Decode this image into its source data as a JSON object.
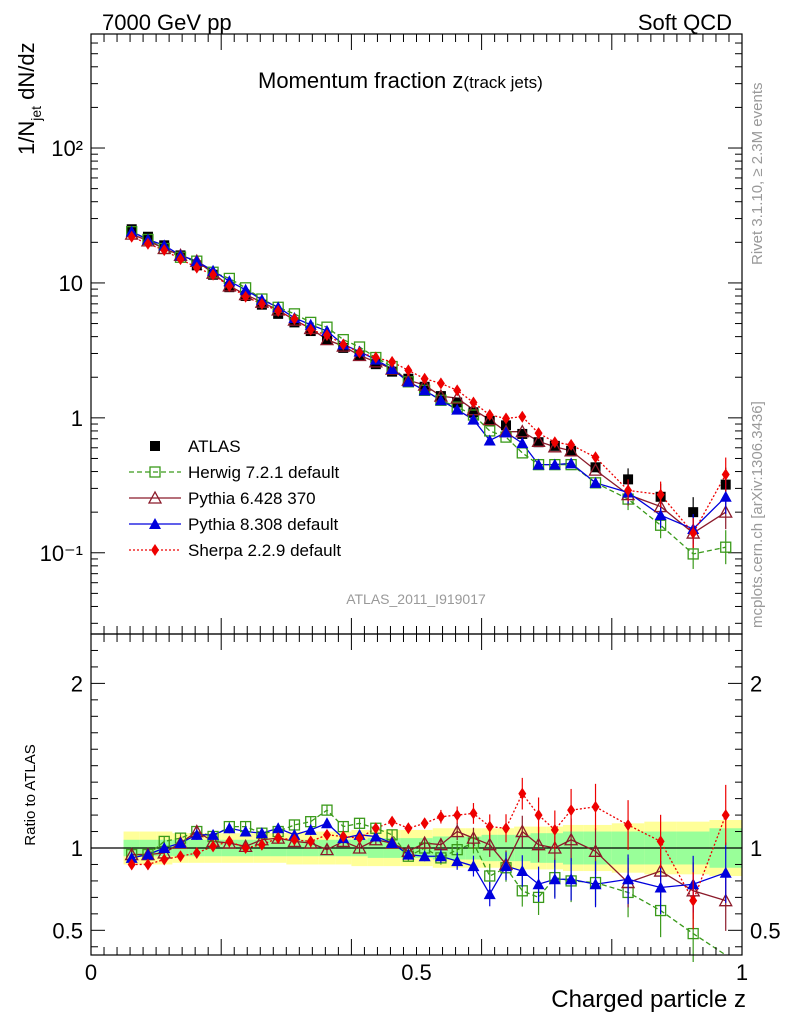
{
  "header": {
    "energy": "7000 GeV pp",
    "process": "Soft QCD"
  },
  "side_labels": {
    "rivet": "Rivet 3.1.10, ≥ 2.3M events",
    "mcplots": "mcplots.cern.ch [arXiv:1306.3436]"
  },
  "colors": {
    "band_inner": "#99ff99",
    "band_outer": "#ffff99",
    "atlas": "#000000",
    "herwig": "#3a9a1a",
    "pythia6": "#8b1a2a",
    "pythia8": "#0000dd",
    "sherpa": "#ee0000"
  },
  "chart_data": [
    {
      "type": "scatter",
      "title_main": "Momentum fraction ",
      "title_var": "z",
      "title_sub": "(track jets)",
      "ylabel_a": "1/N",
      "ylabel_sub": "jet",
      "ylabel_b": " dN/dz",
      "analysis_tag": "ATLAS_2011_I919017",
      "yscale": "log",
      "xlim": [
        0,
        1
      ],
      "ylim": [
        0.025,
        700
      ],
      "y_tick_labels": [
        "10⁻¹",
        "1",
        "10",
        "10²"
      ],
      "x": [
        0.0625,
        0.0875,
        0.1125,
        0.1375,
        0.1625,
        0.1875,
        0.2125,
        0.2375,
        0.2625,
        0.2875,
        0.3125,
        0.3375,
        0.3625,
        0.3875,
        0.4125,
        0.4375,
        0.4625,
        0.4875,
        0.5125,
        0.5375,
        0.5625,
        0.5875,
        0.6125,
        0.6375,
        0.6625,
        0.6875,
        0.7125,
        0.7375,
        0.775,
        0.825,
        0.875,
        0.925,
        0.975
      ],
      "legend": [
        "ATLAS",
        "Herwig 7.2.1 default",
        "Pythia 6.428 370",
        "Pythia 8.308 default",
        "Sherpa 2.2.9 default"
      ],
      "series": [
        {
          "name": "ATLAS",
          "values": [
            25,
            22,
            19,
            16,
            13.5,
            11.5,
            9.3,
            8.0,
            6.9,
            5.9,
            5.1,
            4.4,
            3.8,
            3.3,
            2.9,
            2.5,
            2.2,
            1.95,
            1.7,
            1.45,
            1.3,
            1.1,
            0.95,
            0.88,
            0.76,
            0.66,
            0.62,
            0.57,
            0.43,
            0.35,
            0.26,
            0.2,
            0.32
          ]
        },
        {
          "name": "Herwig 7.2.1 default",
          "values": [
            24,
            21,
            18,
            15.5,
            14.5,
            12,
            10.8,
            9.2,
            7.6,
            6.6,
            5.9,
            5.1,
            4.7,
            3.8,
            3.35,
            2.8,
            2.4,
            1.85,
            1.6,
            1.35,
            1.2,
            1.05,
            0.8,
            0.72,
            0.55,
            0.45,
            0.45,
            0.45,
            0.33,
            0.25,
            0.16,
            0.098,
            0.11
          ]
        },
        {
          "name": "Pythia 6.428 370",
          "values": [
            23,
            20.5,
            18,
            16,
            14.5,
            11.8,
            9.5,
            8.2,
            7.2,
            6.3,
            5.3,
            4.6,
            3.8,
            3.4,
            2.9,
            2.6,
            2.3,
            1.9,
            1.75,
            1.45,
            1.4,
            1.15,
            0.97,
            0.79,
            0.79,
            0.67,
            0.61,
            0.57,
            0.41,
            0.27,
            0.22,
            0.14,
            0.2
          ]
        },
        {
          "name": "Pythia 8.308 default",
          "values": [
            24,
            21,
            19,
            16,
            14.5,
            12.3,
            10.3,
            8.9,
            7.5,
            6.6,
            5.5,
            4.9,
            4.4,
            3.5,
            3.1,
            2.7,
            2.3,
            1.85,
            1.6,
            1.35,
            1.15,
            0.97,
            0.68,
            0.78,
            0.65,
            0.45,
            0.45,
            0.46,
            0.33,
            0.28,
            0.19,
            0.15,
            0.26
          ]
        },
        {
          "name": "Sherpa 2.2.9 default",
          "values": [
            22,
            19.5,
            17.5,
            15,
            13,
            11.5,
            9.5,
            7.9,
            7.0,
            6.2,
            5.4,
            4.5,
            4.1,
            3.5,
            3.05,
            2.8,
            2.6,
            2.25,
            1.95,
            1.8,
            1.6,
            1.3,
            1.05,
            0.99,
            1.02,
            0.77,
            0.66,
            0.63,
            0.51,
            0.29,
            0.27,
            0.14,
            0.38
          ]
        }
      ]
    },
    {
      "type": "scatter",
      "ylabel": "Ratio to ATLAS",
      "xlabel": "Charged particle z",
      "xlim": [
        0,
        1
      ],
      "ylim": [
        0.35,
        2.3
      ],
      "y_ticks": [
        0.5,
        1,
        2
      ],
      "x_ticks": [
        0,
        0.5,
        1
      ],
      "band_inner": [
        0.05,
        0.05,
        0.05,
        0.05,
        0.05,
        0.05,
        0.05,
        0.05,
        0.05,
        0.05,
        0.05,
        0.05,
        0.05,
        0.05,
        0.05,
        0.06,
        0.06,
        0.06,
        0.06,
        0.07,
        0.07,
        0.07,
        0.08,
        0.08,
        0.08,
        0.09,
        0.09,
        0.1,
        0.1,
        0.1,
        0.1,
        0.1,
        0.12
      ],
      "band_outer": [
        0.1,
        0.1,
        0.1,
        0.09,
        0.09,
        0.09,
        0.09,
        0.09,
        0.09,
        0.09,
        0.1,
        0.1,
        0.1,
        0.1,
        0.11,
        0.11,
        0.11,
        0.11,
        0.11,
        0.12,
        0.12,
        0.12,
        0.12,
        0.12,
        0.13,
        0.13,
        0.13,
        0.14,
        0.14,
        0.15,
        0.16,
        0.16,
        0.17
      ],
      "series": [
        {
          "name": "Herwig 7.2.1 default",
          "values": [
            0.96,
            0.96,
            1.04,
            1.06,
            1.1,
            1.07,
            1.13,
            1.13,
            1.09,
            1.1,
            1.14,
            1.16,
            1.23,
            1.13,
            1.15,
            1.12,
            1.08,
            0.95,
            1.0,
            0.94,
            0.99,
            1.03,
            0.83,
            0.88,
            0.74,
            0.7,
            0.82,
            0.8,
            0.79,
            0.73,
            0.62,
            0.48,
            0.34
          ]
        },
        {
          "name": "Pythia 6.428 370",
          "values": [
            0.96,
            0.96,
            0.97,
            1.03,
            1.1,
            1.04,
            1.03,
            1.01,
            1.05,
            1.06,
            1.04,
            1.03,
            0.99,
            1.04,
            1.0,
            1.05,
            1.03,
            0.98,
            1.03,
            1.02,
            1.1,
            1.06,
            1.02,
            0.9,
            1.1,
            1.02,
            1.0,
            1.05,
            0.98,
            0.79,
            0.86,
            0.74,
            0.68
          ]
        },
        {
          "name": "Pythia 8.308 default",
          "values": [
            0.94,
            0.96,
            1.0,
            1.03,
            1.08,
            1.08,
            1.12,
            1.1,
            1.09,
            1.12,
            1.08,
            1.11,
            1.15,
            1.06,
            1.08,
            1.07,
            1.03,
            0.96,
            0.95,
            0.95,
            0.92,
            0.89,
            0.72,
            0.89,
            0.86,
            0.78,
            0.81,
            0.81,
            0.78,
            0.81,
            0.76,
            0.78,
            0.85
          ]
        },
        {
          "name": "Sherpa 2.2.9 default",
          "values": [
            0.9,
            0.9,
            0.93,
            0.95,
            0.97,
            1.01,
            1.04,
            1.0,
            1.02,
            1.06,
            1.05,
            1.04,
            1.08,
            1.07,
            1.06,
            1.12,
            1.16,
            1.12,
            1.15,
            1.19,
            1.2,
            1.21,
            1.13,
            1.12,
            1.33,
            1.2,
            1.11,
            1.23,
            1.25,
            1.14,
            1.04,
            0.68,
            1.2
          ]
        }
      ]
    }
  ]
}
